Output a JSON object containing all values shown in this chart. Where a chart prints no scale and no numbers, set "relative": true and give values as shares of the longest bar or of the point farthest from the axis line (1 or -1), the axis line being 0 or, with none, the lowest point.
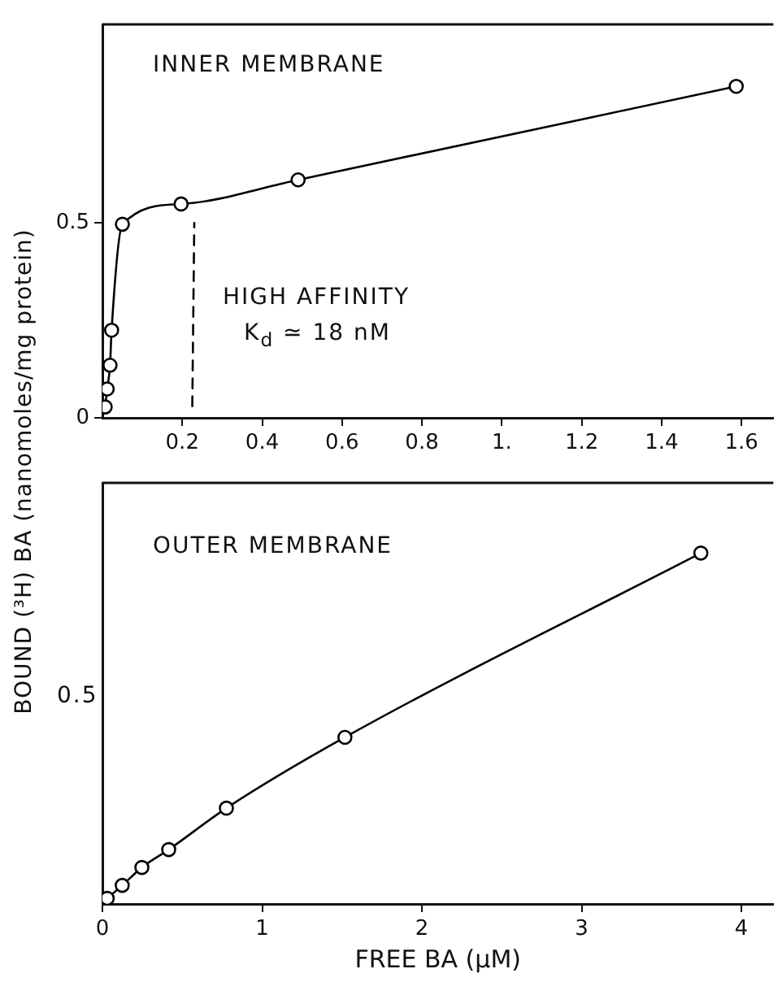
{
  "chart_data": [
    {
      "type": "line",
      "ylabel": "BOUND (³H) BA  (nanomoles/mg protein)",
      "marker": "circle",
      "annotations": [
        "INNER MEMBRANE",
        "HIGH AFFINITY",
        "K$_{d}$ ≃ 18 nM"
      ],
      "series": [
        {
          "color": "#000000",
          "x": [
            0.007,
            0.012,
            0.019,
            0.023,
            0.05,
            0.197,
            0.49,
            1.587
          ],
          "values": [
            0.028,
            0.074,
            0.135,
            0.225,
            0.497,
            0.549,
            0.611,
            0.851
          ]
        },
        {
          "type": "line",
          "color": "#000000",
          "line_style": "dashed",
          "marker": "none",
          "x": [
            0.225,
            0.23
          ],
          "values": [
            0.03,
            0.5
          ]
        }
      ],
      "xlim": [
        0,
        1.68
      ],
      "ylim": [
        0,
        1.01
      ],
      "xticks": [
        0.2,
        0.4,
        0.6,
        0.8,
        {
          "value": 1,
          "label": "1."
        },
        1.2,
        1.4,
        1.6
      ],
      "yticks": [
        0,
        0.5
      ]
    },
    {
      "type": "line",
      "xlabel": "FREE BA (µM)",
      "marker": "circle",
      "relative": true,
      "annotations": [
        "OUTER MEMBRANE",
        "0.5"
      ],
      "series": [
        {
          "color": "#000000",
          "x": [
            0.03,
            0.124,
            0.247,
            0.415,
            0.776,
            1.518,
            3.746
          ],
          "values": [
            0.016,
            0.053,
            0.104,
            0.155,
            0.273,
            0.475,
            1
          ]
        }
      ],
      "xlim": [
        0,
        4.2
      ],
      "xticks": [
        0,
        1,
        2,
        3,
        4
      ]
    }
  ]
}
